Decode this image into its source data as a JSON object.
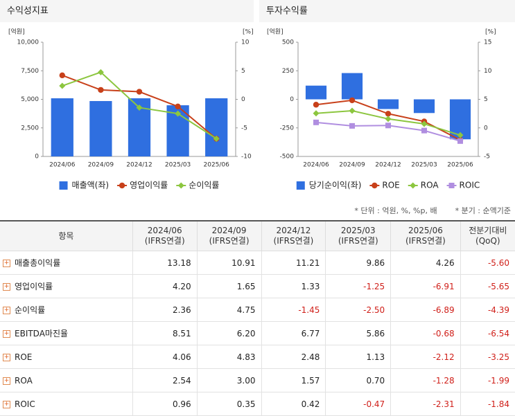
{
  "chart_data": [
    {
      "type": "combo",
      "title": "수익성지표",
      "y_unit": "[억원]",
      "y2_unit": "[%]",
      "categories": [
        "2024/06",
        "2024/09",
        "2024/12",
        "2025/03",
        "2025/06"
      ],
      "ylim": [
        0,
        10000
      ],
      "yticks": [
        0,
        {
          "value": 2500,
          "label": "2,500"
        },
        {
          "value": 5000,
          "label": "5,000"
        },
        {
          "value": 7500,
          "label": "7,500"
        },
        {
          "value": 10000,
          "label": "10,000"
        }
      ],
      "y2lim": [
        -10,
        10
      ],
      "y2ticks": [
        -10,
        -5,
        0,
        5,
        10
      ],
      "series": [
        {
          "name": "매출액(좌)",
          "color": "#2f6fe0",
          "values": [
            5090,
            4850,
            5090,
            4480,
            5090
          ]
        },
        {
          "name": "영업이익률",
          "color": "#c8401a",
          "marker": "circle",
          "axis": "y2",
          "values": [
            4.2,
            1.65,
            1.33,
            -1.25,
            -6.91
          ]
        },
        {
          "name": "순이익률",
          "color": "#8cc63f",
          "marker": "diamond",
          "axis": "y2",
          "values": [
            2.36,
            4.75,
            -1.45,
            -2.5,
            -6.89
          ]
        }
      ]
    },
    {
      "type": "combo",
      "title": "투자수익률",
      "y_unit": "[억원]",
      "y2_unit": "[%]",
      "categories": [
        "2024/06",
        "2024/09",
        "2024/12",
        "2025/03",
        "2025/06"
      ],
      "ylim": [
        -500,
        500
      ],
      "yticks": [
        -500,
        -250,
        0,
        250,
        500
      ],
      "y2lim": [
        -5,
        15
      ],
      "y2ticks": [
        -5,
        0,
        5,
        10,
        15
      ],
      "series": [
        {
          "name": "당기순이익(좌)",
          "color": "#2f6fe0",
          "values": [
            120,
            230,
            -85,
            -120,
            -350
          ]
        },
        {
          "name": "ROE",
          "color": "#c8401a",
          "marker": "circle",
          "axis": "y2",
          "values": [
            4.06,
            4.83,
            2.48,
            1.13,
            -2.12
          ]
        },
        {
          "name": "ROA",
          "color": "#8cc63f",
          "marker": "diamond",
          "axis": "y2",
          "values": [
            2.54,
            3.0,
            1.57,
            0.7,
            -1.28
          ]
        },
        {
          "name": "ROIC",
          "color": "#b08ee0",
          "marker": "square",
          "axis": "y2",
          "values": [
            0.96,
            0.35,
            0.42,
            -0.47,
            -2.31
          ]
        }
      ]
    }
  ],
  "notes": [
    "* 단위 : 억원, %, %p, 배",
    "* 분기 : 순액기준"
  ],
  "table": {
    "header": "항목",
    "columns": [
      {
        "period": "2024/06",
        "basis": "(IFRS연결)"
      },
      {
        "period": "2024/09",
        "basis": "(IFRS연결)"
      },
      {
        "period": "2024/12",
        "basis": "(IFRS연결)"
      },
      {
        "period": "2025/03",
        "basis": "(IFRS연결)"
      },
      {
        "period": "2025/06",
        "basis": "(IFRS연결)"
      },
      {
        "period": "전분기대비",
        "basis": "(QoQ)"
      }
    ],
    "rows": [
      {
        "label": "매출총이익률",
        "cells": [
          "13.18",
          "10.91",
          "11.21",
          "9.86",
          "4.26",
          "-5.60"
        ]
      },
      {
        "label": "영업이익률",
        "cells": [
          "4.20",
          "1.65",
          "1.33",
          "-1.25",
          "-6.91",
          "-5.65"
        ]
      },
      {
        "label": "순이익률",
        "cells": [
          "2.36",
          "4.75",
          "-1.45",
          "-2.50",
          "-6.89",
          "-4.39"
        ]
      },
      {
        "label": "EBITDA마진율",
        "cells": [
          "8.51",
          "6.20",
          "6.77",
          "5.86",
          "-0.68",
          "-6.54"
        ]
      },
      {
        "label": "ROE",
        "cells": [
          "4.06",
          "4.83",
          "2.48",
          "1.13",
          "-2.12",
          "-3.25"
        ]
      },
      {
        "label": "ROA",
        "cells": [
          "2.54",
          "3.00",
          "1.57",
          "0.70",
          "-1.28",
          "-1.99"
        ]
      },
      {
        "label": "ROIC",
        "cells": [
          "0.96",
          "0.35",
          "0.42",
          "-0.47",
          "-2.31",
          "-1.84"
        ]
      }
    ]
  }
}
